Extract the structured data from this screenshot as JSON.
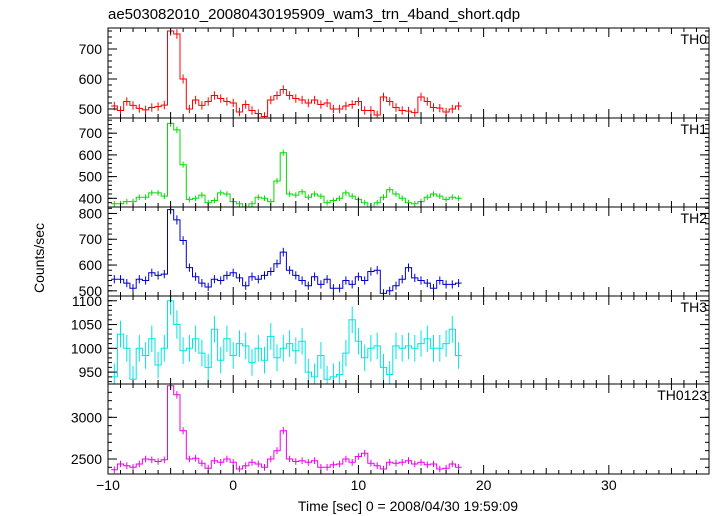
{
  "chart_data": {
    "type": "line",
    "title": "ae503082010_20080430195909_wam3_trn_4band_short.qdp",
    "xlabel": "Time [sec] 0 = 2008/04/30 19:59:09",
    "ylabel": "Counts/sec",
    "grid": false,
    "xlim": [
      -10,
      38
    ],
    "x_ticks": [
      -10,
      0,
      10,
      20,
      30
    ],
    "x_tick_labels": [
      "−10",
      "0",
      "10",
      "20",
      "30"
    ],
    "bin_width": 0.5,
    "x_start": -9.5,
    "panels": [
      {
        "name": "TH0",
        "color": "#ff0000",
        "ylim": [
          470,
          770
        ],
        "y_ticks": [
          500,
          600,
          700
        ],
        "values": [
          510,
          495,
          525,
          512,
          502,
          497,
          505,
          508,
          513,
          760,
          750,
          600,
          500,
          530,
          512,
          525,
          545,
          535,
          525,
          520,
          490,
          515,
          495,
          485,
          475,
          530,
          545,
          565,
          545,
          535,
          530,
          520,
          530,
          515,
          520,
          500,
          500,
          510,
          515,
          525,
          495,
          495,
          480,
          540,
          525,
          505,
          495,
          493,
          488,
          540,
          525,
          505,
          503,
          490,
          500,
          510
        ],
        "errors": [
          14,
          14,
          14,
          14,
          14,
          14,
          14,
          14,
          14,
          16,
          16,
          15,
          14,
          14,
          14,
          14,
          14,
          14,
          14,
          14,
          14,
          14,
          14,
          14,
          14,
          14,
          14,
          14,
          14,
          14,
          14,
          14,
          14,
          14,
          14,
          14,
          14,
          14,
          14,
          14,
          14,
          14,
          14,
          14,
          14,
          14,
          14,
          14,
          14,
          14,
          14,
          14,
          14,
          14,
          14,
          14
        ]
      },
      {
        "name": "TH1",
        "color": "#00dd00",
        "ylim": [
          360,
          770
        ],
        "y_ticks": [
          400,
          500,
          600,
          700
        ],
        "values": [
          375,
          375,
          385,
          385,
          405,
          405,
          425,
          425,
          410,
          745,
          715,
          555,
          395,
          400,
          415,
          380,
          390,
          425,
          420,
          385,
          375,
          360,
          375,
          405,
          400,
          385,
          480,
          610,
          420,
          415,
          430,
          405,
          420,
          410,
          380,
          390,
          400,
          425,
          410,
          395,
          380,
          360,
          380,
          405,
          440,
          420,
          400,
          380,
          375,
          385,
          405,
          420,
          410,
          395,
          405,
          400
        ],
        "errors": [
          13,
          13,
          13,
          13,
          13,
          13,
          13,
          13,
          13,
          15,
          15,
          14,
          13,
          13,
          13,
          13,
          13,
          13,
          13,
          13,
          13,
          13,
          13,
          13,
          13,
          13,
          13,
          14,
          13,
          13,
          13,
          13,
          13,
          13,
          13,
          13,
          13,
          13,
          13,
          13,
          13,
          13,
          13,
          13,
          13,
          13,
          13,
          13,
          13,
          13,
          13,
          13,
          13,
          13,
          13,
          13
        ]
      },
      {
        "name": "TH2",
        "color": "#0000cc",
        "ylim": [
          480,
          825
        ],
        "y_ticks": [
          500,
          600,
          700,
          800
        ],
        "values": [
          545,
          545,
          530,
          510,
          545,
          540,
          570,
          560,
          565,
          815,
          775,
          695,
          590,
          555,
          530,
          515,
          545,
          540,
          560,
          570,
          550,
          520,
          555,
          545,
          560,
          575,
          605,
          650,
          580,
          560,
          540,
          520,
          555,
          525,
          545,
          510,
          510,
          540,
          525,
          555,
          540,
          575,
          580,
          490,
          500,
          520,
          545,
          590,
          550,
          540,
          530,
          510,
          540,
          525,
          525,
          530
        ],
        "errors": [
          16,
          16,
          16,
          16,
          16,
          16,
          16,
          16,
          16,
          18,
          18,
          17,
          16,
          16,
          16,
          16,
          16,
          16,
          16,
          16,
          16,
          16,
          16,
          16,
          16,
          16,
          16,
          17,
          16,
          16,
          16,
          16,
          16,
          16,
          16,
          16,
          16,
          16,
          16,
          16,
          16,
          16,
          16,
          16,
          16,
          16,
          16,
          16,
          16,
          16,
          16,
          16,
          16,
          16,
          16,
          16
        ]
      },
      {
        "name": "TH3",
        "color": "#00e5e5",
        "ylim": [
          925,
          1110
        ],
        "y_ticks": [
          950,
          1000,
          1050,
          1100
        ],
        "values": [
          940,
          1030,
          1000,
          935,
          1000,
          985,
          1020,
          965,
          1000,
          1100,
          1050,
          995,
          1000,
          1020,
          990,
          960,
          1040,
          975,
          1020,
          985,
          1010,
          1005,
          970,
          1000,
          975,
          1025,
          980,
          1000,
          1010,
          995,
          1015,
          950,
          940,
          985,
          935,
          940,
          945,
          990,
          1060,
          1015,
          980,
          1000,
          1005,
          960,
          945,
          1005,
          1000,
          1005,
          1000,
          1010,
          1020,
          1000,
          1000,
          1010,
          1040,
          985
        ],
        "errors": [
          28,
          28,
          28,
          28,
          28,
          28,
          28,
          28,
          28,
          30,
          30,
          28,
          28,
          28,
          28,
          28,
          28,
          28,
          28,
          28,
          28,
          28,
          28,
          28,
          28,
          28,
          28,
          28,
          28,
          28,
          28,
          28,
          28,
          28,
          28,
          28,
          28,
          28,
          28,
          28,
          28,
          28,
          28,
          28,
          28,
          28,
          28,
          28,
          28,
          28,
          28,
          28,
          28,
          28,
          28,
          28
        ]
      },
      {
        "name": "TH0123",
        "color": "#ee00ee",
        "ylim": [
          2320,
          3400
        ],
        "y_ticks": [
          2500,
          3000
        ],
        "values": [
          2370,
          2440,
          2420,
          2400,
          2440,
          2500,
          2490,
          2470,
          2490,
          3380,
          3270,
          2840,
          2500,
          2510,
          2450,
          2390,
          2480,
          2460,
          2500,
          2460,
          2380,
          2420,
          2460,
          2440,
          2400,
          2500,
          2600,
          2840,
          2500,
          2470,
          2480,
          2460,
          2480,
          2400,
          2400,
          2430,
          2440,
          2500,
          2460,
          2530,
          2570,
          2450,
          2420,
          2380,
          2460,
          2450,
          2460,
          2480,
          2440,
          2460,
          2430,
          2440,
          2380,
          2390,
          2440,
          2400
        ],
        "errors": [
          40,
          40,
          40,
          40,
          40,
          40,
          40,
          40,
          40,
          45,
          45,
          42,
          40,
          40,
          40,
          40,
          40,
          40,
          40,
          40,
          40,
          40,
          40,
          40,
          40,
          40,
          40,
          42,
          40,
          40,
          40,
          40,
          40,
          40,
          40,
          40,
          40,
          40,
          40,
          40,
          40,
          40,
          40,
          40,
          40,
          40,
          40,
          40,
          40,
          40,
          40,
          40,
          40,
          40,
          40,
          40
        ]
      }
    ]
  }
}
